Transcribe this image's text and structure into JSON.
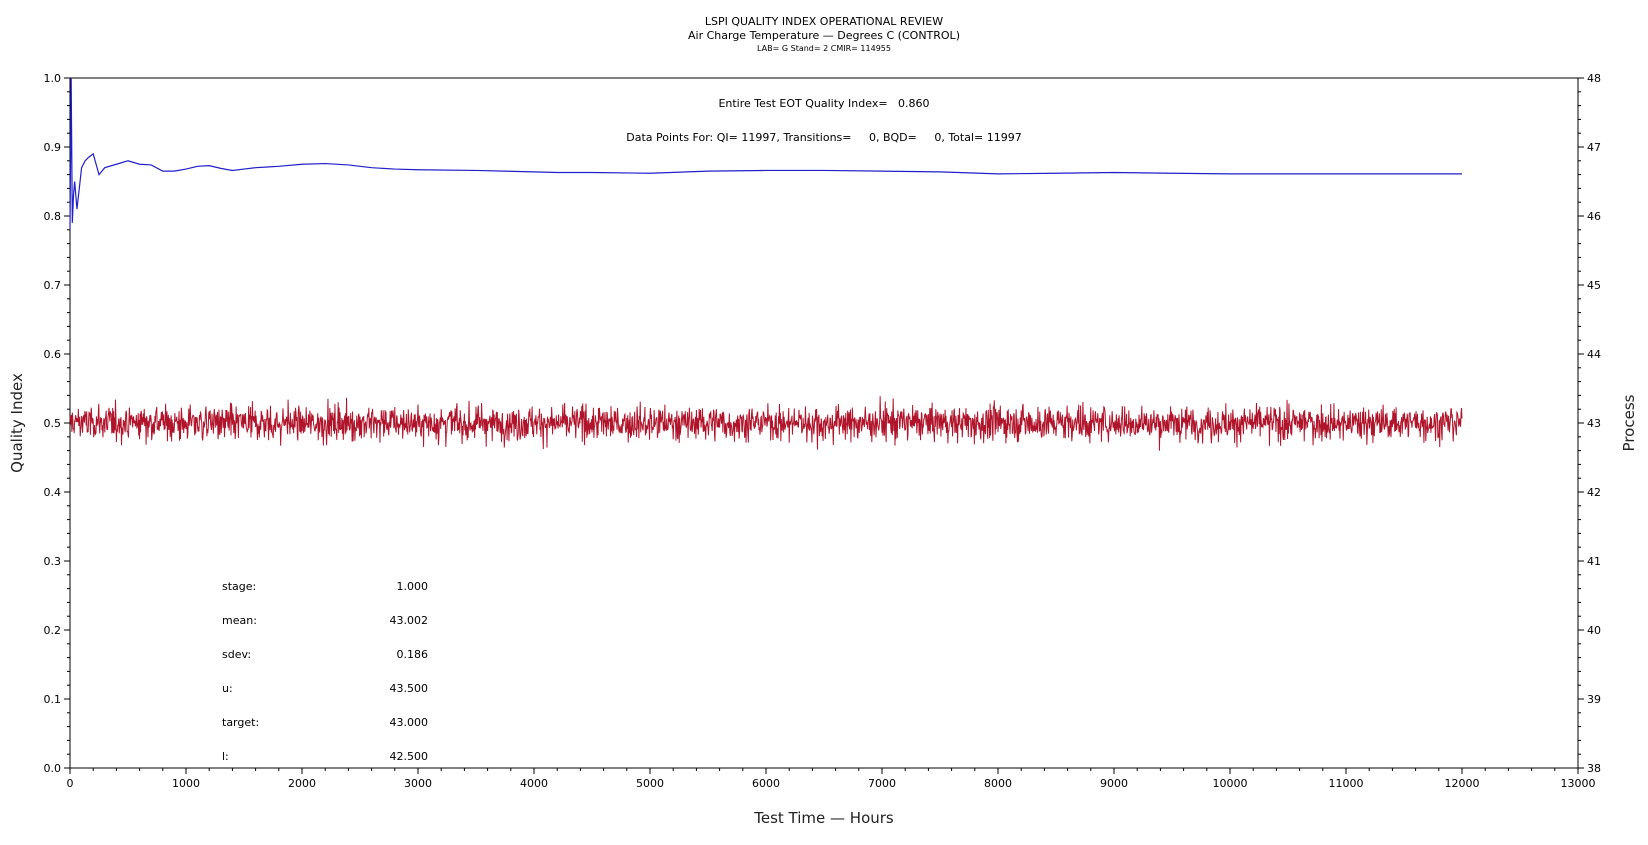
{
  "chart_data": {
    "type": "line",
    "title": "LSPI QUALITY INDEX OPERATIONAL REVIEW",
    "subtitle": "Air Charge Temperature — Degrees C (CONTROL)",
    "subtitle2": "LAB= G Stand= 2 CMIR= 114955",
    "annotation_line1": "Entire Test EOT Quality Index=   0.860",
    "annotation_line2": "Data Points For: QI= 11997, Transitions=     0, BQD=     0, Total= 11997",
    "xlabel": "Test Time — Hours",
    "ylabel": "Quality Index",
    "y2label": "Process",
    "xlim": [
      0,
      13000
    ],
    "ylim": [
      0.0,
      1.0
    ],
    "y2lim": [
      38,
      48
    ],
    "x_ticks": [
      "0",
      "1000",
      "2000",
      "3000",
      "4000",
      "5000",
      "6000",
      "7000",
      "8000",
      "9000",
      "10000",
      "11000",
      "12000",
      "13000"
    ],
    "y_ticks": [
      "0.0",
      "0.1",
      "0.2",
      "0.3",
      "0.4",
      "0.5",
      "0.6",
      "0.7",
      "0.8",
      "0.9",
      "1.0"
    ],
    "y2_ticks": [
      "38",
      "39",
      "40",
      "41",
      "42",
      "43",
      "44",
      "45",
      "46",
      "47",
      "48"
    ],
    "grid": false,
    "legend": "none",
    "colors": {
      "quality_index": "#1f1fc8",
      "process": "#b0142a"
    },
    "series": [
      {
        "axis": "left",
        "x": [
          0,
          10,
          20,
          30,
          40,
          60,
          80,
          100,
          130,
          160,
          200,
          250,
          300,
          400,
          500,
          600,
          700,
          800,
          900,
          1000,
          1100,
          1200,
          1300,
          1400,
          1500,
          1600,
          1700,
          1800,
          2000,
          2200,
          2400,
          2600,
          2800,
          3000,
          3500,
          4000,
          4200,
          4500,
          5000,
          5500,
          6000,
          6500,
          7000,
          7500,
          8000,
          8500,
          9000,
          9500,
          10000,
          10500,
          11000,
          11500,
          12000
        ],
        "values": [
          0.78,
          1.0,
          0.79,
          0.83,
          0.85,
          0.81,
          0.84,
          0.87,
          0.88,
          0.885,
          0.89,
          0.86,
          0.87,
          0.875,
          0.88,
          0.875,
          0.874,
          0.865,
          0.865,
          0.868,
          0.872,
          0.873,
          0.869,
          0.866,
          0.868,
          0.87,
          0.871,
          0.872,
          0.875,
          0.876,
          0.874,
          0.87,
          0.868,
          0.867,
          0.866,
          0.864,
          0.863,
          0.863,
          0.862,
          0.865,
          0.866,
          0.866,
          0.865,
          0.864,
          0.861,
          0.862,
          0.863,
          0.862,
          0.861,
          0.861,
          0.861,
          0.861,
          0.861
        ]
      },
      {
        "axis": "right",
        "mean": 43.002,
        "sdev": 0.186,
        "xlim": [
          0,
          12000
        ],
        "range": [
          42.25,
          43.75
        ]
      }
    ],
    "stats": [
      {
        "label": "stage:",
        "value": "1.000"
      },
      {
        "label": "mean:",
        "value": "43.002"
      },
      {
        "label": "sdev:",
        "value": "0.186"
      },
      {
        "label": "u:",
        "value": "43.500"
      },
      {
        "label": "target:",
        "value": "43.000"
      },
      {
        "label": "l:",
        "value": "42.500"
      }
    ]
  }
}
